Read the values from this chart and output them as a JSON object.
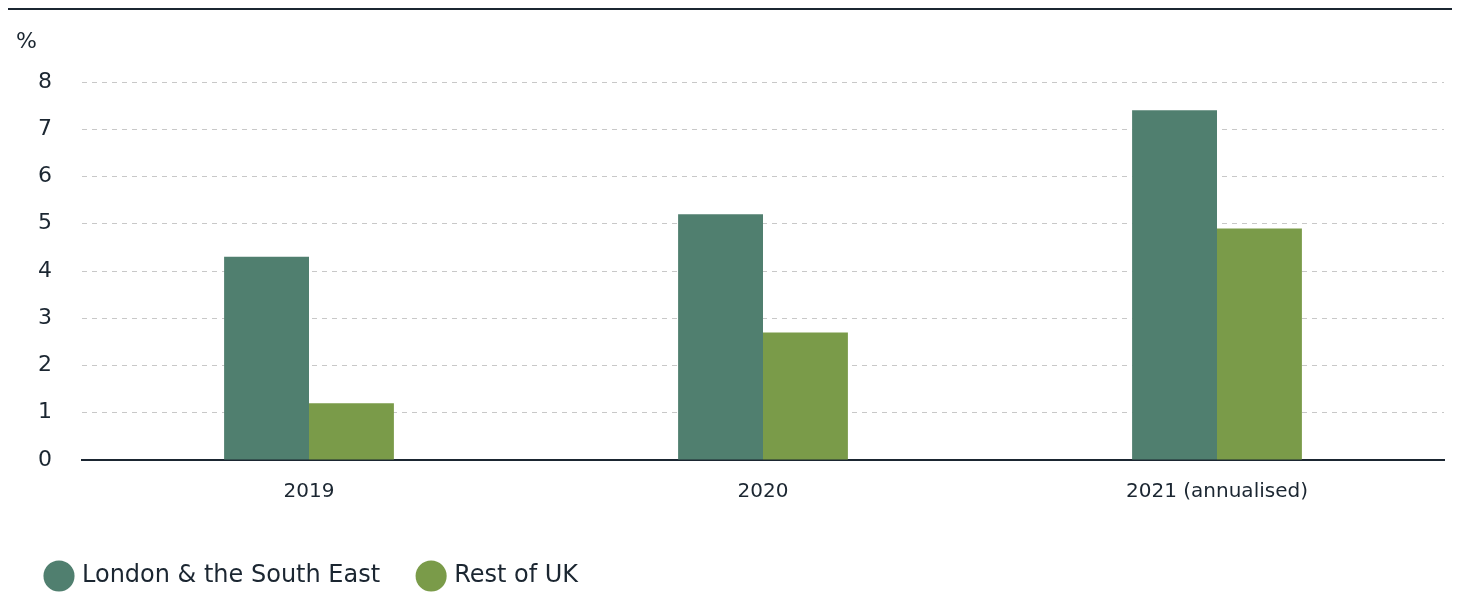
{
  "chart_data": {
    "type": "bar",
    "ylabel": "%",
    "categories": [
      "2019",
      "2020",
      "2021 (annualised)"
    ],
    "series": [
      {
        "name": "London & the South East",
        "color": "#507f6f",
        "values": [
          4.3,
          5.2,
          7.4
        ]
      },
      {
        "name": "Rest of UK",
        "color": "#7a9b49",
        "values": [
          1.2,
          2.7,
          4.9
        ]
      }
    ],
    "ylim": [
      0,
      8
    ],
    "yticks": [
      0,
      1,
      2,
      3,
      4,
      5,
      6,
      7,
      8
    ],
    "grid": "y",
    "legend": "bottom left"
  }
}
